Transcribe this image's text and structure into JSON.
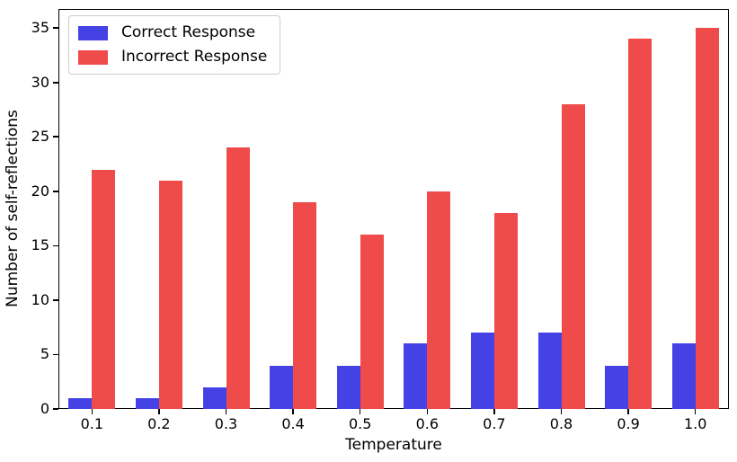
{
  "chart_data": {
    "type": "bar",
    "title": "",
    "xlabel": "Temperature",
    "ylabel": "Number of self-reflections",
    "categories": [
      "0.1",
      "0.2",
      "0.3",
      "0.4",
      "0.5",
      "0.6",
      "0.7",
      "0.8",
      "0.9",
      "1.0"
    ],
    "series": [
      {
        "name": "Correct Response",
        "color": "#4442E5",
        "values": [
          1,
          1,
          2,
          4,
          4,
          6,
          7,
          7,
          4,
          6
        ]
      },
      {
        "name": "Incorrect Response",
        "color": "#EF4B4B",
        "values": [
          22,
          21,
          24,
          19,
          16,
          20,
          18,
          28,
          34,
          35
        ]
      }
    ],
    "yticks": [
      0,
      5,
      10,
      15,
      20,
      25,
      30,
      35
    ],
    "ylim": [
      0,
      36.75
    ],
    "grid": false,
    "legend_position": "upper-left",
    "frame_color": "#000000",
    "background_color": "#ffffff"
  }
}
